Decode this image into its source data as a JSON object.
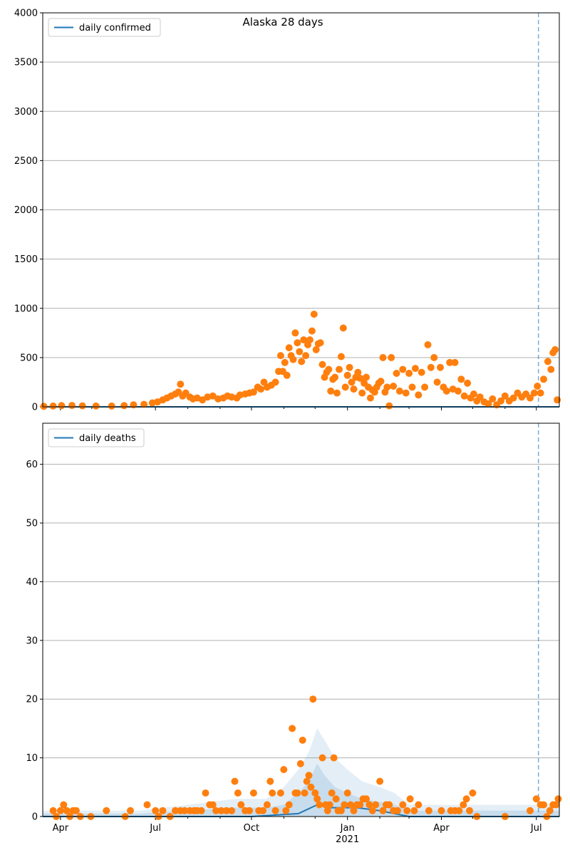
{
  "figure": {
    "title": "Alaska 28 days"
  },
  "colors": {
    "line": "#1f77b4",
    "points": "#ff7f0e",
    "band": "#1f77b4",
    "grid": "#b0b0b0",
    "vline": "#1f77b4"
  },
  "x_axis": {
    "range": [
      "2020-03-15",
      "2021-07-23"
    ],
    "major_ticks": [
      {
        "date": "2020-04-01",
        "label": "Apr"
      },
      {
        "date": "2020-07-01",
        "label": "Jul"
      },
      {
        "date": "2020-10-01",
        "label": "Oct"
      },
      {
        "date": "2021-01-01",
        "label": "Jan"
      },
      {
        "date": "2021-04-01",
        "label": "Apr"
      },
      {
        "date": "2021-07-01",
        "label": "Jul"
      }
    ],
    "year_label": {
      "date": "2021-01-01",
      "label": "2021"
    },
    "minor_ticks": [
      "2020-05-01",
      "2020-06-01",
      "2020-08-01",
      "2020-09-01",
      "2020-11-01",
      "2020-12-01",
      "2021-02-01",
      "2021-03-01",
      "2021-05-01",
      "2021-06-01"
    ]
  },
  "chart_data": [
    {
      "type": "line",
      "legend": "daily confirmed",
      "legend_position": "upper-left",
      "ylim": [
        0,
        4000
      ],
      "yticks": [
        0,
        500,
        1000,
        1500,
        2000,
        2500,
        3000,
        3500,
        4000
      ],
      "grid": "y",
      "forecast_line_date": "2021-07-03",
      "line_value": 0,
      "observed": [
        [
          "2020-03-16",
          5
        ],
        [
          "2020-03-25",
          8
        ],
        [
          "2020-04-02",
          12
        ],
        [
          "2020-04-12",
          14
        ],
        [
          "2020-04-22",
          10
        ],
        [
          "2020-05-05",
          8
        ],
        [
          "2020-05-20",
          8
        ],
        [
          "2020-06-01",
          12
        ],
        [
          "2020-06-10",
          20
        ],
        [
          "2020-06-20",
          25
        ],
        [
          "2020-06-28",
          40
        ],
        [
          "2020-07-03",
          50
        ],
        [
          "2020-07-08",
          70
        ],
        [
          "2020-07-12",
          90
        ],
        [
          "2020-07-16",
          110
        ],
        [
          "2020-07-20",
          130
        ],
        [
          "2020-07-23",
          150
        ],
        [
          "2020-07-25",
          230
        ],
        [
          "2020-07-27",
          110
        ],
        [
          "2020-07-30",
          140
        ],
        [
          "2020-08-03",
          100
        ],
        [
          "2020-08-06",
          80
        ],
        [
          "2020-08-10",
          90
        ],
        [
          "2020-08-15",
          70
        ],
        [
          "2020-08-20",
          100
        ],
        [
          "2020-08-25",
          110
        ],
        [
          "2020-08-30",
          80
        ],
        [
          "2020-09-04",
          90
        ],
        [
          "2020-09-08",
          110
        ],
        [
          "2020-09-12",
          100
        ],
        [
          "2020-09-17",
          90
        ],
        [
          "2020-09-20",
          120
        ],
        [
          "2020-09-25",
          130
        ],
        [
          "2020-09-29",
          140
        ],
        [
          "2020-10-03",
          150
        ],
        [
          "2020-10-07",
          200
        ],
        [
          "2020-10-10",
          180
        ],
        [
          "2020-10-13",
          250
        ],
        [
          "2020-10-16",
          200
        ],
        [
          "2020-10-20",
          220
        ],
        [
          "2020-10-24",
          250
        ],
        [
          "2020-10-27",
          360
        ],
        [
          "2020-10-29",
          520
        ],
        [
          "2020-10-31",
          360
        ],
        [
          "2020-11-02",
          450
        ],
        [
          "2020-11-04",
          320
        ],
        [
          "2020-11-06",
          600
        ],
        [
          "2020-11-08",
          520
        ],
        [
          "2020-11-10",
          480
        ],
        [
          "2020-11-12",
          750
        ],
        [
          "2020-11-14",
          650
        ],
        [
          "2020-11-16",
          560
        ],
        [
          "2020-11-18",
          460
        ],
        [
          "2020-11-20",
          680
        ],
        [
          "2020-11-22",
          520
        ],
        [
          "2020-11-24",
          630
        ],
        [
          "2020-11-26",
          680
        ],
        [
          "2020-11-28",
          770
        ],
        [
          "2020-11-30",
          940
        ],
        [
          "2020-12-02",
          580
        ],
        [
          "2020-12-04",
          640
        ],
        [
          "2020-12-06",
          650
        ],
        [
          "2020-12-08",
          430
        ],
        [
          "2020-12-10",
          300
        ],
        [
          "2020-12-12",
          350
        ],
        [
          "2020-12-14",
          380
        ],
        [
          "2020-12-16",
          160
        ],
        [
          "2020-12-18",
          280
        ],
        [
          "2020-12-20",
          300
        ],
        [
          "2020-12-22",
          140
        ],
        [
          "2020-12-24",
          380
        ],
        [
          "2020-12-26",
          510
        ],
        [
          "2020-12-28",
          800
        ],
        [
          "2020-12-30",
          200
        ],
        [
          "2021-01-01",
          320
        ],
        [
          "2021-01-03",
          400
        ],
        [
          "2021-01-05",
          250
        ],
        [
          "2021-01-07",
          180
        ],
        [
          "2021-01-09",
          300
        ],
        [
          "2021-01-11",
          350
        ],
        [
          "2021-01-13",
          290
        ],
        [
          "2021-01-15",
          140
        ],
        [
          "2021-01-17",
          240
        ],
        [
          "2021-01-19",
          300
        ],
        [
          "2021-01-21",
          200
        ],
        [
          "2021-01-23",
          90
        ],
        [
          "2021-01-25",
          170
        ],
        [
          "2021-01-27",
          150
        ],
        [
          "2021-01-29",
          200
        ],
        [
          "2021-01-31",
          240
        ],
        [
          "2021-02-02",
          260
        ],
        [
          "2021-02-04",
          500
        ],
        [
          "2021-02-06",
          150
        ],
        [
          "2021-02-08",
          200
        ],
        [
          "2021-02-10",
          10
        ],
        [
          "2021-02-12",
          500
        ],
        [
          "2021-02-14",
          210
        ],
        [
          "2021-02-17",
          340
        ],
        [
          "2021-02-20",
          160
        ],
        [
          "2021-02-23",
          380
        ],
        [
          "2021-02-26",
          140
        ],
        [
          "2021-03-01",
          340
        ],
        [
          "2021-03-04",
          200
        ],
        [
          "2021-03-07",
          390
        ],
        [
          "2021-03-10",
          120
        ],
        [
          "2021-03-13",
          350
        ],
        [
          "2021-03-16",
          200
        ],
        [
          "2021-03-19",
          630
        ],
        [
          "2021-03-22",
          400
        ],
        [
          "2021-03-25",
          500
        ],
        [
          "2021-03-28",
          250
        ],
        [
          "2021-03-31",
          400
        ],
        [
          "2021-04-03",
          200
        ],
        [
          "2021-04-06",
          160
        ],
        [
          "2021-04-09",
          450
        ],
        [
          "2021-04-12",
          180
        ],
        [
          "2021-04-14",
          450
        ],
        [
          "2021-04-17",
          160
        ],
        [
          "2021-04-20",
          280
        ],
        [
          "2021-04-23",
          110
        ],
        [
          "2021-04-26",
          240
        ],
        [
          "2021-04-29",
          90
        ],
        [
          "2021-05-02",
          130
        ],
        [
          "2021-05-05",
          60
        ],
        [
          "2021-05-08",
          100
        ],
        [
          "2021-05-12",
          50
        ],
        [
          "2021-05-16",
          30
        ],
        [
          "2021-05-20",
          80
        ],
        [
          "2021-05-24",
          20
        ],
        [
          "2021-05-28",
          60
        ],
        [
          "2021-06-01",
          110
        ],
        [
          "2021-06-05",
          60
        ],
        [
          "2021-06-09",
          90
        ],
        [
          "2021-06-13",
          140
        ],
        [
          "2021-06-17",
          100
        ],
        [
          "2021-06-21",
          130
        ],
        [
          "2021-06-25",
          90
        ],
        [
          "2021-06-29",
          140
        ],
        [
          "2021-07-02",
          210
        ],
        [
          "2021-07-05",
          140
        ],
        [
          "2021-07-08",
          280
        ],
        [
          "2021-07-12",
          460
        ],
        [
          "2021-07-15",
          380
        ],
        [
          "2021-07-17",
          550
        ],
        [
          "2021-07-19",
          580
        ],
        [
          "2021-07-21",
          70
        ]
      ]
    },
    {
      "type": "line",
      "legend": "daily deaths",
      "legend_position": "upper-left",
      "ylim": [
        0,
        67
      ],
      "yticks": [
        0,
        10,
        20,
        30,
        40,
        50,
        60
      ],
      "grid": "y",
      "forecast_line_date": "2021-07-03",
      "band_outer": [
        [
          "2020-03-15",
          1
        ],
        [
          "2020-06-15",
          1
        ],
        [
          "2020-08-01",
          2
        ],
        [
          "2020-09-15",
          3
        ],
        [
          "2020-10-15",
          3
        ],
        [
          "2020-11-01",
          5
        ],
        [
          "2020-11-15",
          8
        ],
        [
          "2020-11-25",
          11
        ],
        [
          "2020-12-03",
          15
        ],
        [
          "2020-12-10",
          13
        ],
        [
          "2020-12-20",
          10
        ],
        [
          "2021-01-01",
          8
        ],
        [
          "2021-01-15",
          6
        ],
        [
          "2021-02-01",
          5
        ],
        [
          "2021-02-15",
          4
        ],
        [
          "2021-03-01",
          2
        ],
        [
          "2021-04-01",
          2
        ],
        [
          "2021-05-01",
          2
        ],
        [
          "2021-06-01",
          2
        ],
        [
          "2021-07-23",
          2
        ]
      ],
      "band_inner": [
        [
          "2020-03-15",
          0.5
        ],
        [
          "2020-06-15",
          0.5
        ],
        [
          "2020-08-01",
          1
        ],
        [
          "2020-09-15",
          1.5
        ],
        [
          "2020-10-15",
          1.5
        ],
        [
          "2020-11-01",
          2
        ],
        [
          "2020-11-15",
          4
        ],
        [
          "2020-11-25",
          6
        ],
        [
          "2020-12-03",
          9
        ],
        [
          "2020-12-10",
          7
        ],
        [
          "2020-12-20",
          5
        ],
        [
          "2021-01-01",
          4
        ],
        [
          "2021-01-15",
          3
        ],
        [
          "2021-02-01",
          2.5
        ],
        [
          "2021-02-15",
          2
        ],
        [
          "2021-03-01",
          1
        ],
        [
          "2021-07-23",
          1
        ]
      ],
      "line": [
        [
          "2020-03-15",
          0
        ],
        [
          "2020-10-01",
          0
        ],
        [
          "2020-11-15",
          0.5
        ],
        [
          "2020-12-03",
          2
        ],
        [
          "2020-12-15",
          1.5
        ],
        [
          "2021-01-10",
          1.5
        ],
        [
          "2021-02-01",
          1
        ],
        [
          "2021-03-01",
          0
        ],
        [
          "2021-07-23",
          0
        ]
      ],
      "observed": [
        [
          "2020-03-25",
          1
        ],
        [
          "2020-03-28",
          0
        ],
        [
          "2020-04-01",
          1
        ],
        [
          "2020-04-04",
          2
        ],
        [
          "2020-04-07",
          1
        ],
        [
          "2020-04-10",
          0
        ],
        [
          "2020-04-13",
          1
        ],
        [
          "2020-04-16",
          1
        ],
        [
          "2020-04-20",
          0
        ],
        [
          "2020-04-30",
          0
        ],
        [
          "2020-05-15",
          1
        ],
        [
          "2020-06-02",
          0
        ],
        [
          "2020-06-07",
          1
        ],
        [
          "2020-06-23",
          2
        ],
        [
          "2020-07-01",
          1
        ],
        [
          "2020-07-04",
          0
        ],
        [
          "2020-07-08",
          1
        ],
        [
          "2020-07-15",
          0
        ],
        [
          "2020-07-20",
          1
        ],
        [
          "2020-07-25",
          1
        ],
        [
          "2020-07-29",
          1
        ],
        [
          "2020-08-03",
          1
        ],
        [
          "2020-08-07",
          1
        ],
        [
          "2020-08-10",
          1
        ],
        [
          "2020-08-14",
          1
        ],
        [
          "2020-08-18",
          4
        ],
        [
          "2020-08-22",
          2
        ],
        [
          "2020-08-25",
          2
        ],
        [
          "2020-08-28",
          1
        ],
        [
          "2020-09-02",
          1
        ],
        [
          "2020-09-07",
          1
        ],
        [
          "2020-09-12",
          1
        ],
        [
          "2020-09-15",
          6
        ],
        [
          "2020-09-18",
          4
        ],
        [
          "2020-09-21",
          2
        ],
        [
          "2020-09-25",
          1
        ],
        [
          "2020-09-29",
          1
        ],
        [
          "2020-10-03",
          4
        ],
        [
          "2020-10-08",
          1
        ],
        [
          "2020-10-12",
          1
        ],
        [
          "2020-10-16",
          2
        ],
        [
          "2020-10-19",
          6
        ],
        [
          "2020-10-21",
          4
        ],
        [
          "2020-10-24",
          1
        ],
        [
          "2020-10-29",
          4
        ],
        [
          "2020-11-01",
          8
        ],
        [
          "2020-11-03",
          1
        ],
        [
          "2020-11-06",
          2
        ],
        [
          "2020-11-09",
          15
        ],
        [
          "2020-11-12",
          4
        ],
        [
          "2020-11-14",
          4
        ],
        [
          "2020-11-17",
          9
        ],
        [
          "2020-11-19",
          13
        ],
        [
          "2020-11-21",
          4
        ],
        [
          "2020-11-23",
          6
        ],
        [
          "2020-11-25",
          7
        ],
        [
          "2020-11-27",
          5
        ],
        [
          "2020-11-29",
          20
        ],
        [
          "2020-12-01",
          4
        ],
        [
          "2020-12-03",
          3
        ],
        [
          "2020-12-05",
          2
        ],
        [
          "2020-12-08",
          10
        ],
        [
          "2020-12-11",
          2
        ],
        [
          "2020-12-13",
          1
        ],
        [
          "2020-12-15",
          2
        ],
        [
          "2020-12-17",
          4
        ],
        [
          "2020-12-19",
          10
        ],
        [
          "2020-12-21",
          3
        ],
        [
          "2020-12-23",
          1
        ],
        [
          "2020-12-26",
          1
        ],
        [
          "2020-12-29",
          2
        ],
        [
          "2021-01-01",
          4
        ],
        [
          "2021-01-04",
          2
        ],
        [
          "2021-01-07",
          1
        ],
        [
          "2021-01-10",
          2
        ],
        [
          "2021-01-13",
          2
        ],
        [
          "2021-01-16",
          3
        ],
        [
          "2021-01-19",
          3
        ],
        [
          "2021-01-22",
          2
        ],
        [
          "2021-01-25",
          1
        ],
        [
          "2021-01-28",
          2
        ],
        [
          "2021-02-01",
          6
        ],
        [
          "2021-02-04",
          1
        ],
        [
          "2021-02-07",
          2
        ],
        [
          "2021-02-10",
          2
        ],
        [
          "2021-02-14",
          1
        ],
        [
          "2021-02-18",
          1
        ],
        [
          "2021-02-23",
          2
        ],
        [
          "2021-02-27",
          1
        ],
        [
          "2021-03-02",
          3
        ],
        [
          "2021-03-06",
          1
        ],
        [
          "2021-03-10",
          2
        ],
        [
          "2021-03-20",
          1
        ],
        [
          "2021-04-01",
          1
        ],
        [
          "2021-04-10",
          1
        ],
        [
          "2021-04-14",
          1
        ],
        [
          "2021-04-18",
          1
        ],
        [
          "2021-04-22",
          2
        ],
        [
          "2021-04-25",
          3
        ],
        [
          "2021-04-28",
          1
        ],
        [
          "2021-05-01",
          4
        ],
        [
          "2021-05-05",
          0
        ],
        [
          "2021-06-01",
          0
        ],
        [
          "2021-06-25",
          1
        ],
        [
          "2021-07-01",
          3
        ],
        [
          "2021-07-05",
          2
        ],
        [
          "2021-07-08",
          2
        ],
        [
          "2021-07-11",
          0
        ],
        [
          "2021-07-14",
          1
        ],
        [
          "2021-07-17",
          2
        ],
        [
          "2021-07-20",
          2
        ],
        [
          "2021-07-22",
          3
        ]
      ]
    }
  ]
}
